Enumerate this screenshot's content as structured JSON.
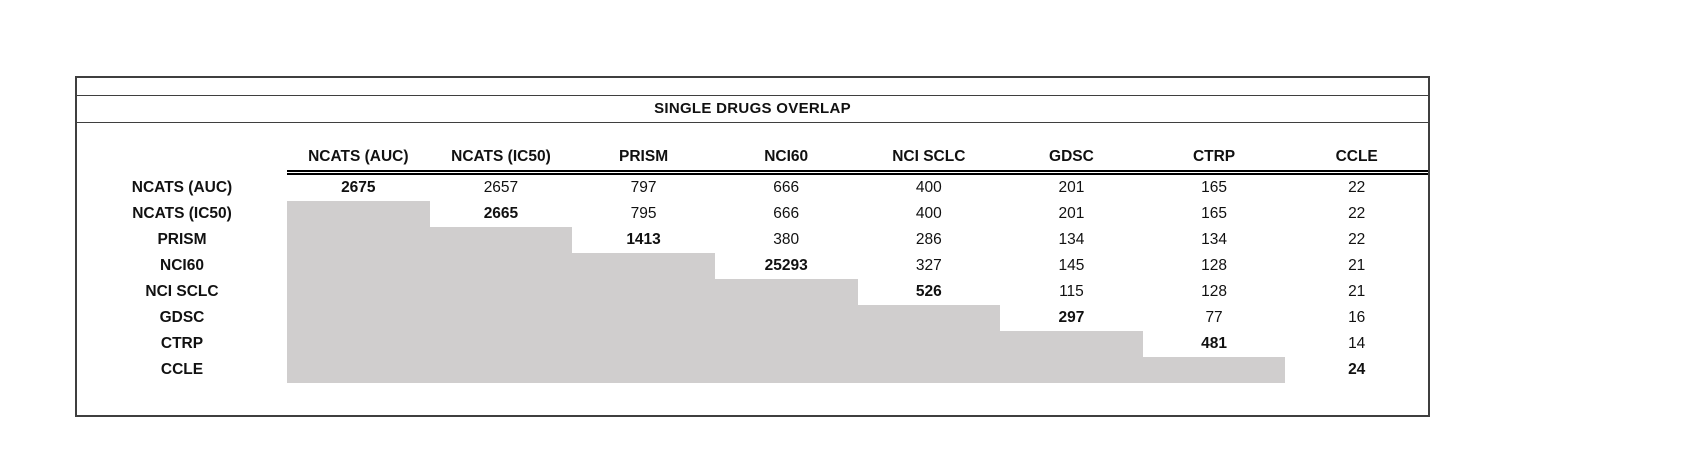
{
  "page": {
    "background": "#ffffff"
  },
  "colors": {
    "shaded_cell_fill": "#d0cece",
    "table_border": "#3f3f3f",
    "header_underline": "#000000",
    "text": "#111111"
  },
  "chart_data": {
    "type": "table",
    "title": "SINGLE DRUGS OVERLAP",
    "columns": [
      "NCATS (AUC)",
      "NCATS (IC50)",
      "PRISM",
      "NCI60",
      "NCI SCLC",
      "GDSC",
      "CTRP",
      "CCLE"
    ],
    "row_labels": [
      "NCATS (AUC)",
      "NCATS (IC50)",
      "PRISM",
      "NCI60",
      "NCI SCLC",
      "GDSC",
      "CTRP",
      "CCLE"
    ],
    "matrix": [
      [
        2675,
        2657,
        797,
        666,
        400,
        201,
        165,
        22
      ],
      [
        null,
        2665,
        795,
        666,
        400,
        201,
        165,
        22
      ],
      [
        null,
        null,
        1413,
        380,
        286,
        134,
        134,
        22
      ],
      [
        null,
        null,
        null,
        25293,
        327,
        145,
        128,
        21
      ],
      [
        null,
        null,
        null,
        null,
        526,
        115,
        128,
        21
      ],
      [
        null,
        null,
        null,
        null,
        null,
        297,
        77,
        16
      ],
      [
        null,
        null,
        null,
        null,
        null,
        null,
        481,
        14
      ],
      [
        null,
        null,
        null,
        null,
        null,
        null,
        null,
        24
      ]
    ],
    "diagonal_bold": true,
    "lower_triangle_shaded": true,
    "legend_position": "none",
    "grid": "off"
  }
}
